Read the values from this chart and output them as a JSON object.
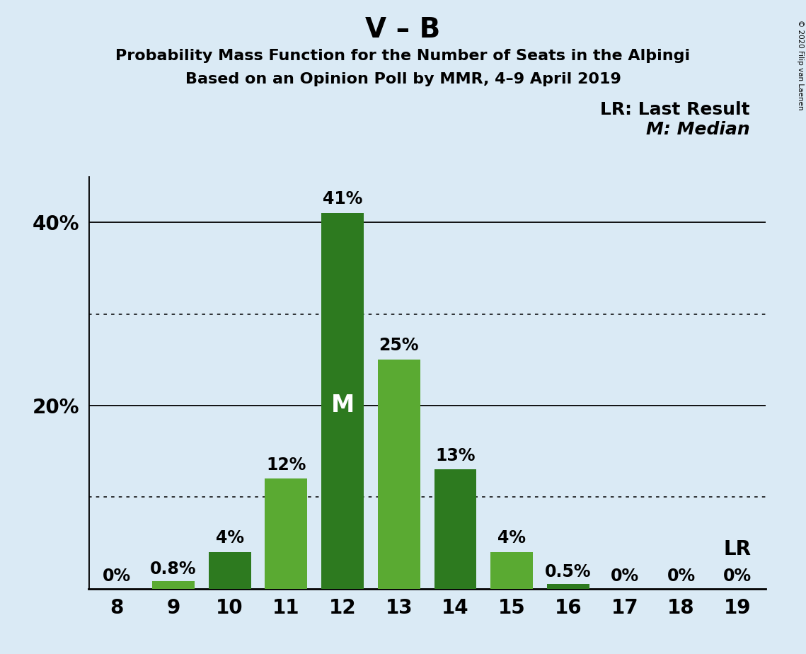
{
  "title": "V – B",
  "subtitle1": "Probability Mass Function for the Number of Seats in the Alþingi",
  "subtitle2": "Based on an Opinion Poll by MMR, 4–9 April 2019",
  "copyright": "© 2020 Filip van Laenen",
  "legend1": "LR: Last Result",
  "legend2": "M: Median",
  "seats": [
    8,
    9,
    10,
    11,
    12,
    13,
    14,
    15,
    16,
    17,
    18,
    19
  ],
  "probabilities": [
    0.0,
    0.8,
    4.0,
    12.0,
    41.0,
    25.0,
    13.0,
    4.0,
    0.5,
    0.0,
    0.0,
    0.0
  ],
  "labels": [
    "0%",
    "0.8%",
    "4%",
    "12%",
    "41%",
    "25%",
    "13%",
    "4%",
    "0.5%",
    "0%",
    "0%",
    "0%"
  ],
  "bar_colors": [
    "#5aaa32",
    "#5aaa32",
    "#2d7a1f",
    "#5aaa32",
    "#2d7a1f",
    "#5aaa32",
    "#2d7a1f",
    "#5aaa32",
    "#2d7a1f",
    "#5aaa32",
    "#5aaa32",
    "#5aaa32"
  ],
  "median_seat": 12,
  "lr_seat": 19,
  "background_color": "#daeaf5",
  "ylim": [
    0,
    45
  ],
  "yticks": [
    20,
    40
  ],
  "ytick_labels": [
    "20%",
    "40%"
  ],
  "solid_gridlines": [
    20,
    40
  ],
  "dotted_gridlines": [
    10,
    30
  ],
  "title_fontsize": 28,
  "subtitle_fontsize": 16,
  "axis_fontsize": 20,
  "bar_label_fontsize": 17,
  "median_label_fontsize": 24,
  "lr_label_fontsize": 20,
  "legend_fontsize": 18
}
